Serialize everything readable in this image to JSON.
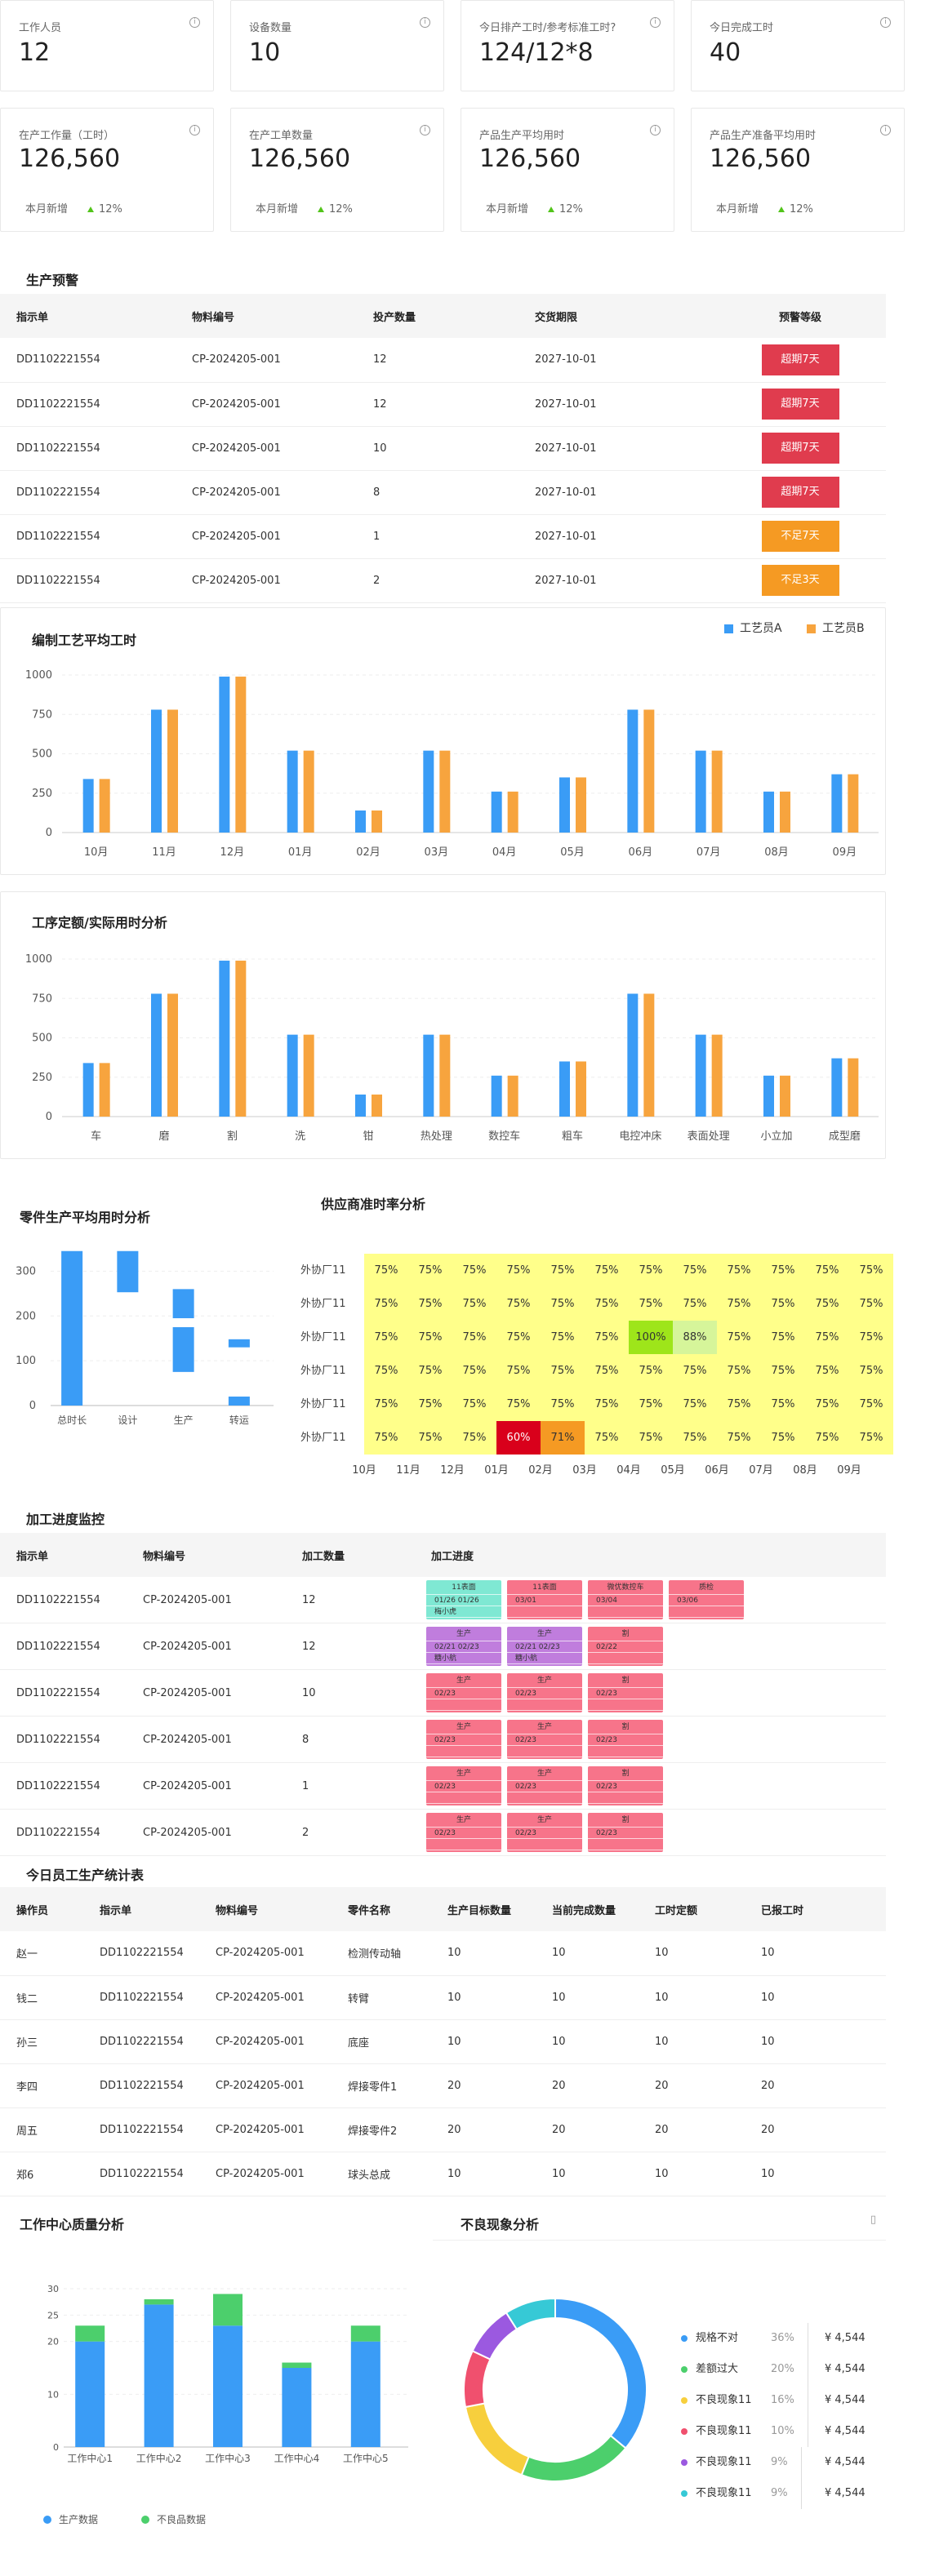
{
  "stats_top": [
    {
      "label": "工作人员",
      "value": "12"
    },
    {
      "label": "设备数量",
      "value": "10"
    },
    {
      "label": "今日排产工时/参考标准工时?",
      "value": "124/12*8"
    },
    {
      "label": "今日完成工时",
      "value": "40"
    }
  ],
  "stats_bottom": [
    {
      "label": "在产工作量（工时）",
      "value": "126,560",
      "foot": "本月新增",
      "pct": "12%"
    },
    {
      "label": "在产工单数量",
      "value": "126,560",
      "foot": "本月新增",
      "pct": "12%"
    },
    {
      "label": "产品生产平均用时",
      "value": "126,560",
      "foot": "本月新增",
      "pct": "12%"
    },
    {
      "label": "产品生产准备平均用时",
      "value": "126,560",
      "foot": "本月新增",
      "pct": "12%"
    }
  ],
  "info_glyph": "i",
  "warning": {
    "title": "生产预警",
    "headers": [
      "指示单",
      "物料编号",
      "投产数量",
      "交货期限",
      "预警等级"
    ],
    "rows": [
      [
        "DD1102221554",
        "CP-2024205-001",
        "12",
        "2027-10-01",
        "超期7天",
        "red"
      ],
      [
        "DD1102221554",
        "CP-2024205-001",
        "12",
        "2027-10-01",
        "超期7天",
        "red"
      ],
      [
        "DD1102221554",
        "CP-2024205-001",
        "10",
        "2027-10-01",
        "超期7天",
        "red"
      ],
      [
        "DD1102221554",
        "CP-2024205-001",
        "8",
        "2027-10-01",
        "超期7天",
        "red"
      ],
      [
        "DD1102221554",
        "CP-2024205-001",
        "1",
        "2027-10-01",
        "不足7天",
        "orange"
      ],
      [
        "DD1102221554",
        "CP-2024205-001",
        "2",
        "2027-10-01",
        "不足3天",
        "orange"
      ]
    ]
  },
  "colors": {
    "blue": "#3a9cf6",
    "orange": "#f7a43e",
    "red": "#e03c4e",
    "amber": "#f59a23",
    "green": "#4ccf6c"
  },
  "chart_data": [
    {
      "type": "bar",
      "title": "编制工艺平均工时",
      "categories": [
        "10月",
        "11月",
        "12月",
        "01月",
        "02月",
        "03月",
        "04月",
        "05月",
        "06月",
        "07月",
        "08月",
        "09月"
      ],
      "series": [
        {
          "name": "工艺员A",
          "values": [
            340,
            780,
            990,
            520,
            140,
            520,
            260,
            350,
            780,
            520,
            260,
            370
          ]
        },
        {
          "name": "工艺员B",
          "values": [
            340,
            780,
            990,
            520,
            140,
            520,
            260,
            350,
            780,
            520,
            260,
            370
          ]
        }
      ],
      "ylim": [
        0,
        1000
      ],
      "yticks": [
        0,
        250,
        500,
        750,
        1000
      ],
      "legend": "top-right",
      "grid": true
    },
    {
      "type": "bar",
      "title": "工序定额/实际用时分析",
      "categories": [
        "车",
        "磨",
        "割",
        "洗",
        "钳",
        "热处理",
        "数控车",
        "粗车",
        "电控冲床",
        "表面处理",
        "小立加",
        "成型磨"
      ],
      "series": [
        {
          "values": [
            340,
            780,
            990,
            520,
            140,
            520,
            260,
            350,
            780,
            520,
            260,
            370
          ]
        },
        {
          "values": [
            340,
            780,
            990,
            520,
            140,
            520,
            260,
            350,
            780,
            520,
            260,
            370
          ]
        }
      ],
      "ylim": [
        0,
        1000
      ],
      "yticks": [
        0,
        250,
        500,
        750,
        1000
      ],
      "grid": true
    },
    {
      "type": "bar",
      "title": "零件生产平均用时分析",
      "categories": [
        "总时长",
        "设计",
        "生产",
        "转运"
      ],
      "segments": [
        [
          [
            0,
            345
          ]
        ],
        [
          [
            253,
            345
          ]
        ],
        [
          [
            0,
            0
          ],
          [
            75,
            175
          ],
          [
            195,
            260
          ]
        ],
        [
          [
            0,
            20
          ],
          [
            130,
            148
          ]
        ]
      ],
      "ylim": [
        0,
        350
      ],
      "yticks": [
        0,
        100,
        200,
        300
      ],
      "grid": true
    },
    {
      "type": "heatmap",
      "title": "供应商准时率分析",
      "rows": [
        "外协厂11",
        "外协厂11",
        "外协厂11",
        "外协厂11",
        "外协厂11",
        "外协厂11"
      ],
      "columns": [
        "10月",
        "11月",
        "12月",
        "01月",
        "02月",
        "03月",
        "04月",
        "05月",
        "06月",
        "07月",
        "08月",
        "09月"
      ],
      "values": [
        [
          75,
          75,
          75,
          75,
          75,
          75,
          75,
          75,
          75,
          75,
          75,
          75
        ],
        [
          75,
          75,
          75,
          75,
          75,
          75,
          75,
          75,
          75,
          75,
          75,
          75
        ],
        [
          75,
          75,
          75,
          75,
          75,
          75,
          100,
          88,
          75,
          75,
          75,
          75
        ],
        [
          75,
          75,
          75,
          75,
          75,
          75,
          75,
          75,
          75,
          75,
          75,
          75
        ],
        [
          75,
          75,
          75,
          75,
          75,
          75,
          75,
          75,
          75,
          75,
          75,
          75
        ],
        [
          75,
          75,
          75,
          60,
          71,
          75,
          75,
          75,
          75,
          75,
          75,
          75
        ]
      ],
      "unit": "%"
    },
    {
      "type": "bar",
      "title": "工作中心质量分析",
      "categories": [
        "工作中心1",
        "工作中心2",
        "工作中心3",
        "工作中心4",
        "工作中心5"
      ],
      "series": [
        {
          "name": "生产数据",
          "values": [
            20,
            27,
            23,
            15,
            20
          ]
        },
        {
          "name": "不良品数据",
          "values": [
            3,
            1,
            6,
            1,
            3
          ]
        }
      ],
      "stacked": true,
      "ylim": [
        0,
        30
      ],
      "yticks": [
        0,
        10,
        20,
        30
      ],
      "grid": true,
      "legend": "bottom-left"
    },
    {
      "type": "pie",
      "title": "不良现象分析",
      "labels": [
        "规格不对",
        "差额过大",
        "不良现象11",
        "不良现象11",
        "不良现象11",
        "不良现象11"
      ],
      "values": [
        36,
        20,
        16,
        10,
        9,
        9
      ],
      "amounts": [
        "¥ 4,544",
        "¥ 4,544",
        "¥ 4,544",
        "¥ 4,544",
        "¥ 4,544",
        "¥ 4,544"
      ],
      "colors": [
        "#3a9cf6",
        "#4ccf6c",
        "#f7cf3d",
        "#f0506e",
        "#9b59e0",
        "#36c9d6"
      ],
      "donut": true
    }
  ],
  "process": {
    "title": "加工进度监控",
    "headers": [
      "指示单",
      "物料编号",
      "加工数量",
      "加工进度"
    ],
    "rows": [
      {
        "order": "DD1102221554",
        "mat": "CP-2024205-001",
        "qty": "12",
        "steps": [
          {
            "t": "11表面",
            "lines": [
              "01/26",
              "01/26"
            ],
            "extra": "梅小虎",
            "c": "#7fe8d3"
          },
          {
            "t": "11表面",
            "lines": [
              "03/01"
            ],
            "c": "#f7748a"
          },
          {
            "t": "微优数控车",
            "lines": [
              "03/04"
            ],
            "c": "#f7748a"
          },
          {
            "t": "质检",
            "lines": [
              "03/06"
            ],
            "c": "#f7748a"
          }
        ]
      },
      {
        "order": "DD1102221554",
        "mat": "CP-2024205-001",
        "qty": "12",
        "steps": [
          {
            "t": "生产",
            "lines": [
              "02/21",
              "02/23"
            ],
            "extra": "糖小航",
            "c": "#c07ddd"
          },
          {
            "t": "生产",
            "lines": [
              "02/21",
              "02/23"
            ],
            "extra": "糖小航",
            "c": "#c07ddd"
          },
          {
            "t": "割",
            "lines": [
              "02/22"
            ],
            "c": "#f7748a"
          }
        ]
      },
      {
        "order": "DD1102221554",
        "mat": "CP-2024205-001",
        "qty": "10",
        "steps": [
          {
            "t": "生产",
            "lines": [
              "02/23"
            ],
            "c": "#f7748a"
          },
          {
            "t": "生产",
            "lines": [
              "02/23"
            ],
            "c": "#f7748a"
          },
          {
            "t": "割",
            "lines": [
              "02/23"
            ],
            "c": "#f7748a"
          }
        ]
      },
      {
        "order": "DD1102221554",
        "mat": "CP-2024205-001",
        "qty": "8",
        "steps": [
          {
            "t": "生产",
            "lines": [
              "02/23"
            ],
            "c": "#f7748a"
          },
          {
            "t": "生产",
            "lines": [
              "02/23"
            ],
            "c": "#f7748a"
          },
          {
            "t": "割",
            "lines": [
              "02/23"
            ],
            "c": "#f7748a"
          }
        ]
      },
      {
        "order": "DD1102221554",
        "mat": "CP-2024205-001",
        "qty": "1",
        "steps": [
          {
            "t": "生产",
            "lines": [
              "02/23"
            ],
            "c": "#f7748a"
          },
          {
            "t": "生产",
            "lines": [
              "02/23"
            ],
            "c": "#f7748a"
          },
          {
            "t": "割",
            "lines": [
              "02/23"
            ],
            "c": "#f7748a"
          }
        ]
      },
      {
        "order": "DD1102221554",
        "mat": "CP-2024205-001",
        "qty": "2",
        "steps": [
          {
            "t": "生产",
            "lines": [
              "02/23"
            ],
            "c": "#f7748a"
          },
          {
            "t": "生产",
            "lines": [
              "02/23"
            ],
            "c": "#f7748a"
          },
          {
            "t": "割",
            "lines": [
              "02/23"
            ],
            "c": "#f7748a"
          }
        ]
      }
    ]
  },
  "staff": {
    "title": "今日员工生产统计表",
    "headers": [
      "操作员",
      "指示单",
      "物料编号",
      "零件名称",
      "生产目标数量",
      "当前完成数量",
      "工时定额",
      "已报工时"
    ],
    "rows": [
      [
        "赵一",
        "DD1102221554",
        "CP-2024205-001",
        "检测传动轴",
        "10",
        "10",
        "10",
        "10"
      ],
      [
        "钱二",
        "DD1102221554",
        "CP-2024205-001",
        "转臂",
        "10",
        "10",
        "10",
        "10"
      ],
      [
        "孙三",
        "DD1102221554",
        "CP-2024205-001",
        "底座",
        "10",
        "10",
        "10",
        "10"
      ],
      [
        "李四",
        "DD1102221554",
        "CP-2024205-001",
        "焊接零件1",
        "20",
        "20",
        "20",
        "20"
      ],
      [
        "周五",
        "DD1102221554",
        "CP-2024205-001",
        "焊接零件2",
        "20",
        "20",
        "20",
        "20"
      ],
      [
        "郑6",
        "DD1102221554",
        "CP-2024205-001",
        "球头总成",
        "10",
        "10",
        "10",
        "10"
      ]
    ]
  },
  "pie_menu_glyph": "▯"
}
